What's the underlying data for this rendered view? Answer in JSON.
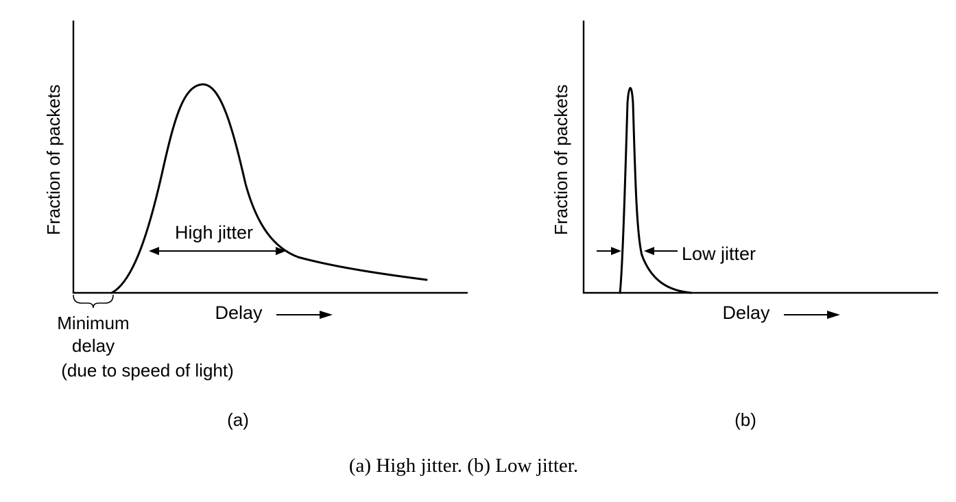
{
  "panel_a": {
    "y_axis_label": "Fraction of packets",
    "x_axis_label": "Delay",
    "jitter_label": "High jitter",
    "min_delay_line1": "Minimum",
    "min_delay_line2": "delay",
    "min_delay_line3": "(due to speed of light)",
    "panel_label": "(a)"
  },
  "panel_b": {
    "y_axis_label": "Fraction of packets",
    "x_axis_label": "Delay",
    "jitter_label": "Low jitter",
    "panel_label": "(b)"
  },
  "caption": "(a) High jitter. (b) Low jitter."
}
